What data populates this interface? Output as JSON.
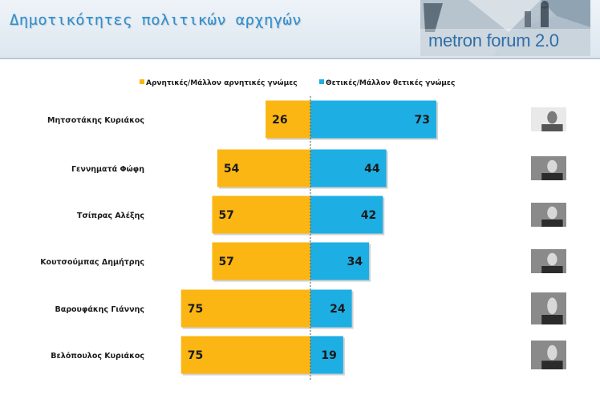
{
  "header": {
    "title": "Δημοτικότητες πολιτικών αρχηγών",
    "logo_text": "metron forum 2.0"
  },
  "colors": {
    "negative": "#fbb613",
    "positive": "#1daee4",
    "accent": "#2d8fd0",
    "label_text": "#1a1a1a"
  },
  "chart_data": {
    "type": "bar",
    "categories": [
      "Μητσοτάκης Κυριάκος",
      "Γεννηματά Φώφη",
      "Τσίπρας Αλέξης",
      "Κουτσούμπας Δημήτρης",
      "Βαρουφάκης Γιάννης",
      "Βελόπουλος Κυριάκος"
    ],
    "series": [
      {
        "name": "Αρνητικές/Μάλλον αρνητικές γνώμες",
        "values": [
          26,
          54,
          57,
          57,
          75,
          75
        ]
      },
      {
        "name": "Θετικές/Μάλλον θετικές γνώμες",
        "values": [
          73,
          44,
          42,
          34,
          24,
          19
        ]
      }
    ],
    "legend_position": "top",
    "orientation": "horizontal-diverging",
    "xlim": [
      -75,
      75
    ],
    "grid": false
  }
}
